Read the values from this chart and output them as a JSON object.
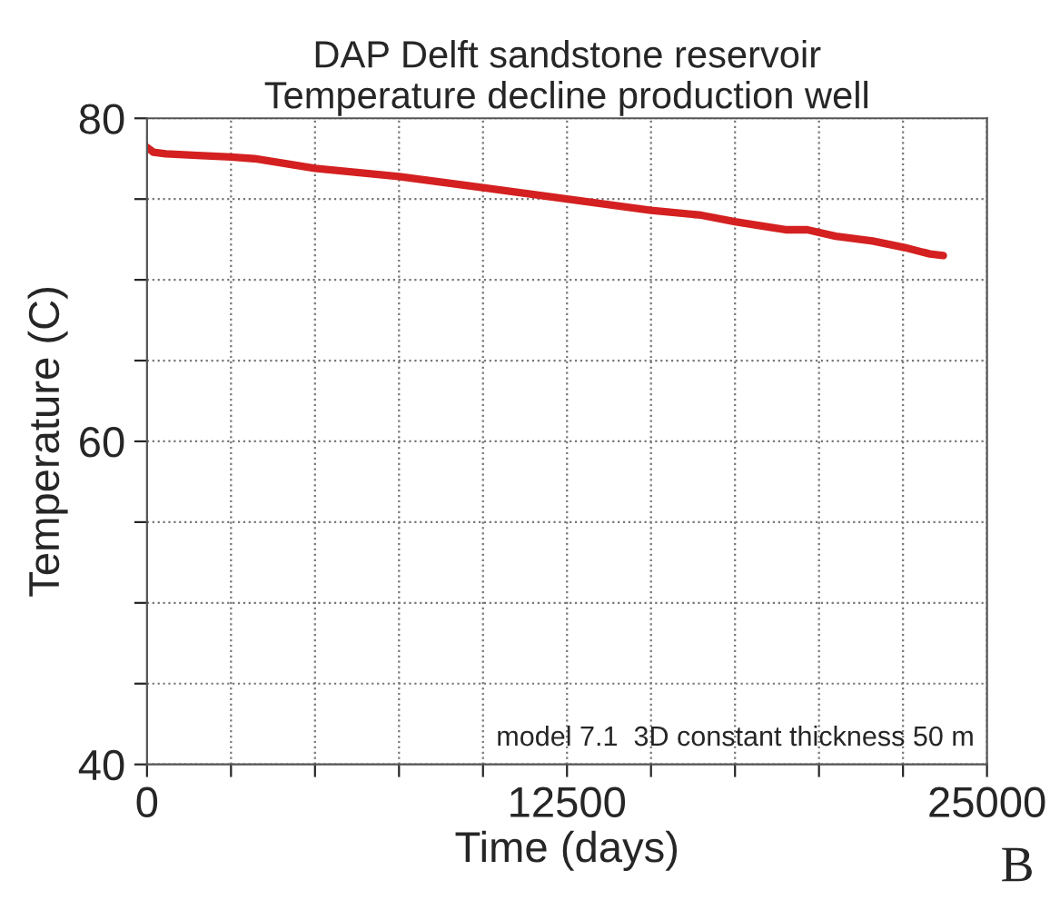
{
  "chart_data": {
    "type": "line",
    "title": "DAP Delft sandstone reservoir\nTemperature decline production well",
    "xlabel": "Time (days)",
    "ylabel": "Temperature (C)",
    "x": [
      0,
      190,
      560,
      1500,
      2500,
      3200,
      5000,
      7500,
      10000,
      12500,
      15000,
      16500,
      17500,
      19000,
      19650,
      20500,
      21600,
      22550,
      23300,
      23700
    ],
    "series": [
      {
        "color": "#d42020",
        "values": [
          78.2,
          77.9,
          77.8,
          77.7,
          77.6,
          77.5,
          76.9,
          76.4,
          75.7,
          75.0,
          74.3,
          74.0,
          73.6,
          73.1,
          73.1,
          72.7,
          72.4,
          72.0,
          71.6,
          71.5
        ]
      }
    ],
    "xlim": [
      0,
      25000
    ],
    "ylim": [
      40,
      80
    ],
    "xticks": [
      0,
      {
        "value": 2500,
        "label": null
      },
      {
        "value": 5000,
        "label": null
      },
      {
        "value": 7500,
        "label": null
      },
      {
        "value": 10000,
        "label": null
      },
      12500,
      {
        "value": 15000,
        "label": null
      },
      {
        "value": 17500,
        "label": null
      },
      {
        "value": 20000,
        "label": null
      },
      {
        "value": 22500,
        "label": null
      },
      25000
    ],
    "yticks": [
      40,
      {
        "value": 45,
        "label": null
      },
      {
        "value": 50,
        "label": null
      },
      {
        "value": 55,
        "label": null
      },
      60,
      {
        "value": 65,
        "label": null
      },
      {
        "value": 70,
        "label": null
      },
      {
        "value": 75,
        "label": null
      },
      80
    ],
    "grid": true,
    "line_style": "solid",
    "marker": "none",
    "annotations": [
      "model 7.1  3D constant thickness 50 m",
      "B"
    ]
  }
}
